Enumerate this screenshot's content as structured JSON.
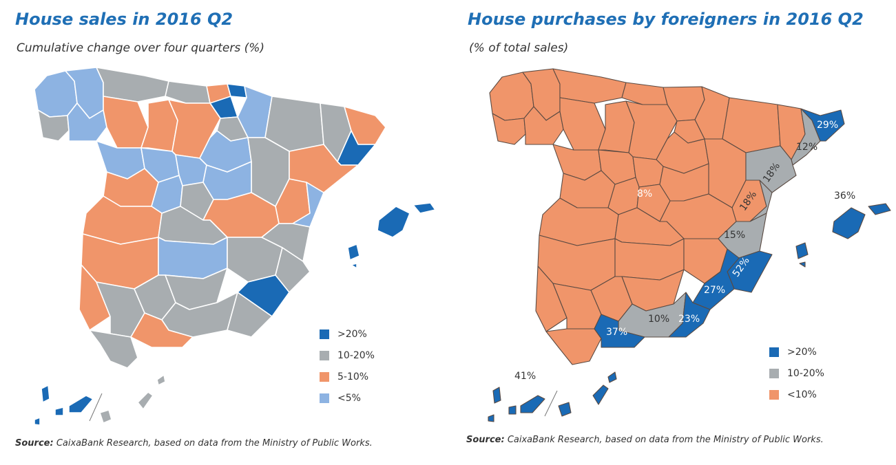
{
  "colors": {
    "above_20": "#1a6ab5",
    "range_10_20": "#a8adb0",
    "range_5_10": "#f0956a",
    "below_5": "#8db3e2",
    "below_10": "#f0956a",
    "title": "#1f6fb5",
    "border": "#ffffff"
  },
  "left_panel": {
    "title": "House sales in 2016 Q2",
    "subtitle": "Cumulative change over four quarters (%)",
    "legend": [
      {
        "label": ">20%",
        "color": "#1a6ab5"
      },
      {
        "label": "10-20%",
        "color": "#a8adb0"
      },
      {
        "label": "5-10%",
        "color": "#f0956a"
      },
      {
        "label": "<5%",
        "color": "#8db3e2"
      }
    ],
    "source_label": "Source:",
    "source_text": "CaixaBank Research, based on data from the Ministry of Public Works."
  },
  "right_panel": {
    "title": "House purchases by foreigners in 2016 Q2",
    "subtitle": "(% of total sales)",
    "legend": [
      {
        "label": ">20%",
        "color": "#1a6ab5"
      },
      {
        "label": "10-20%",
        "color": "#a8adb0"
      },
      {
        "label": "<10%",
        "color": "#f0956a"
      }
    ],
    "map_labels": {
      "girona": "29%",
      "barcelona": "12%",
      "tarragona": "18%",
      "castellon": "18%",
      "valencia": "15%",
      "alicante": "52%",
      "murcia": "27%",
      "almeria": "23%",
      "granada": "10%",
      "malaga": "37%",
      "madrid": "8%",
      "balearic": "36%",
      "canary": "41%"
    },
    "source_label": "Source:",
    "source_text": "CaixaBank Research, based on data from the Ministry of Public Works."
  }
}
